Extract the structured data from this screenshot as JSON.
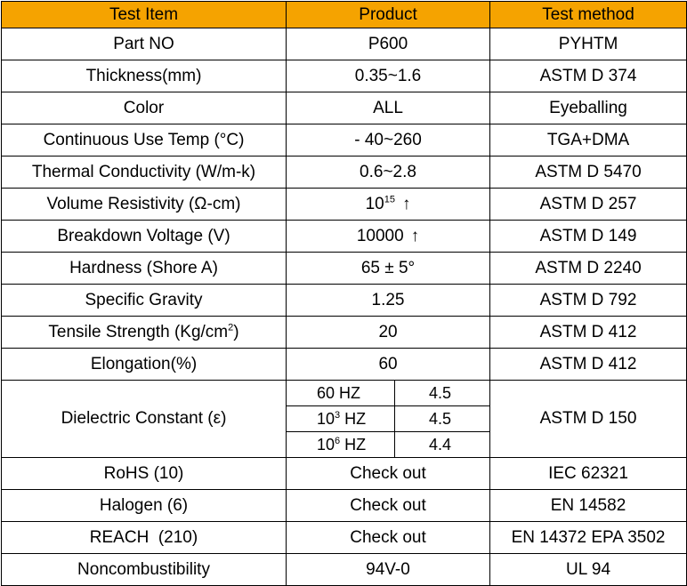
{
  "headers": {
    "item": "Test Item",
    "product": "Product",
    "method": "Test method"
  },
  "rows": [
    {
      "item": "Part NO",
      "product": "P600",
      "method": "PYHTM"
    },
    {
      "item": "Thickness(mm)",
      "product": "0.35~1.6",
      "method": "ASTM D 374"
    },
    {
      "item": "Color",
      "product": "ALL",
      "method": "Eyeballing"
    },
    {
      "item": "Continuous Use Temp (°C)",
      "product": "- 40~260",
      "method": "TGA+DMA"
    },
    {
      "item": "Thermal Conductivity (W/m-k)",
      "product": "0.6~2.8",
      "method": "ASTM D 5470"
    },
    {
      "item": "Volume Resistivity (Ω-cm)",
      "product_base": "10",
      "product_exp": "15",
      "product_arrow": "↑",
      "method": "ASTM D 257"
    },
    {
      "item": "Breakdown Voltage (V)",
      "product": "10000",
      "product_arrow": "↑",
      "method": "ASTM D 149"
    },
    {
      "item": "Hardness (Shore A)",
      "product": "65 ± 5°",
      "method": "ASTM D 2240"
    },
    {
      "item": "Specific Gravity",
      "product": "1.25",
      "method": "ASTM D 792"
    },
    {
      "item_prefix": "Tensile Strength (Kg/cm",
      "item_sup": "2",
      "item_suffix": ")",
      "product": "20",
      "method": "ASTM D 412"
    },
    {
      "item": "Elongation(%)",
      "product": "60",
      "method": "ASTM D 412"
    }
  ],
  "dielectric": {
    "item": "Dielectric Constant (ε)",
    "method": "ASTM D 150",
    "sub": [
      {
        "freq": "60 HZ",
        "value": "4.5"
      },
      {
        "freq_base": "10",
        "freq_exp": "3",
        "freq_unit": " HZ",
        "value": "4.5"
      },
      {
        "freq_base": "10",
        "freq_exp": "6",
        "freq_unit": " HZ",
        "value": "4.4"
      }
    ]
  },
  "tail_rows": [
    {
      "item": "RoHS (10)",
      "product": "Check out",
      "method": "IEC 62321"
    },
    {
      "item": "Halogen (6)",
      "product": "Check out",
      "method": "EN 14582"
    },
    {
      "item": "REACH  (210)",
      "product": "Check out",
      "method": "EN 14372 EPA 3502"
    },
    {
      "item": "Noncombustibility",
      "product": "94V-0",
      "method": "UL 94"
    }
  ],
  "colors": {
    "header_bg": "#f5a300",
    "border": "#000000"
  }
}
